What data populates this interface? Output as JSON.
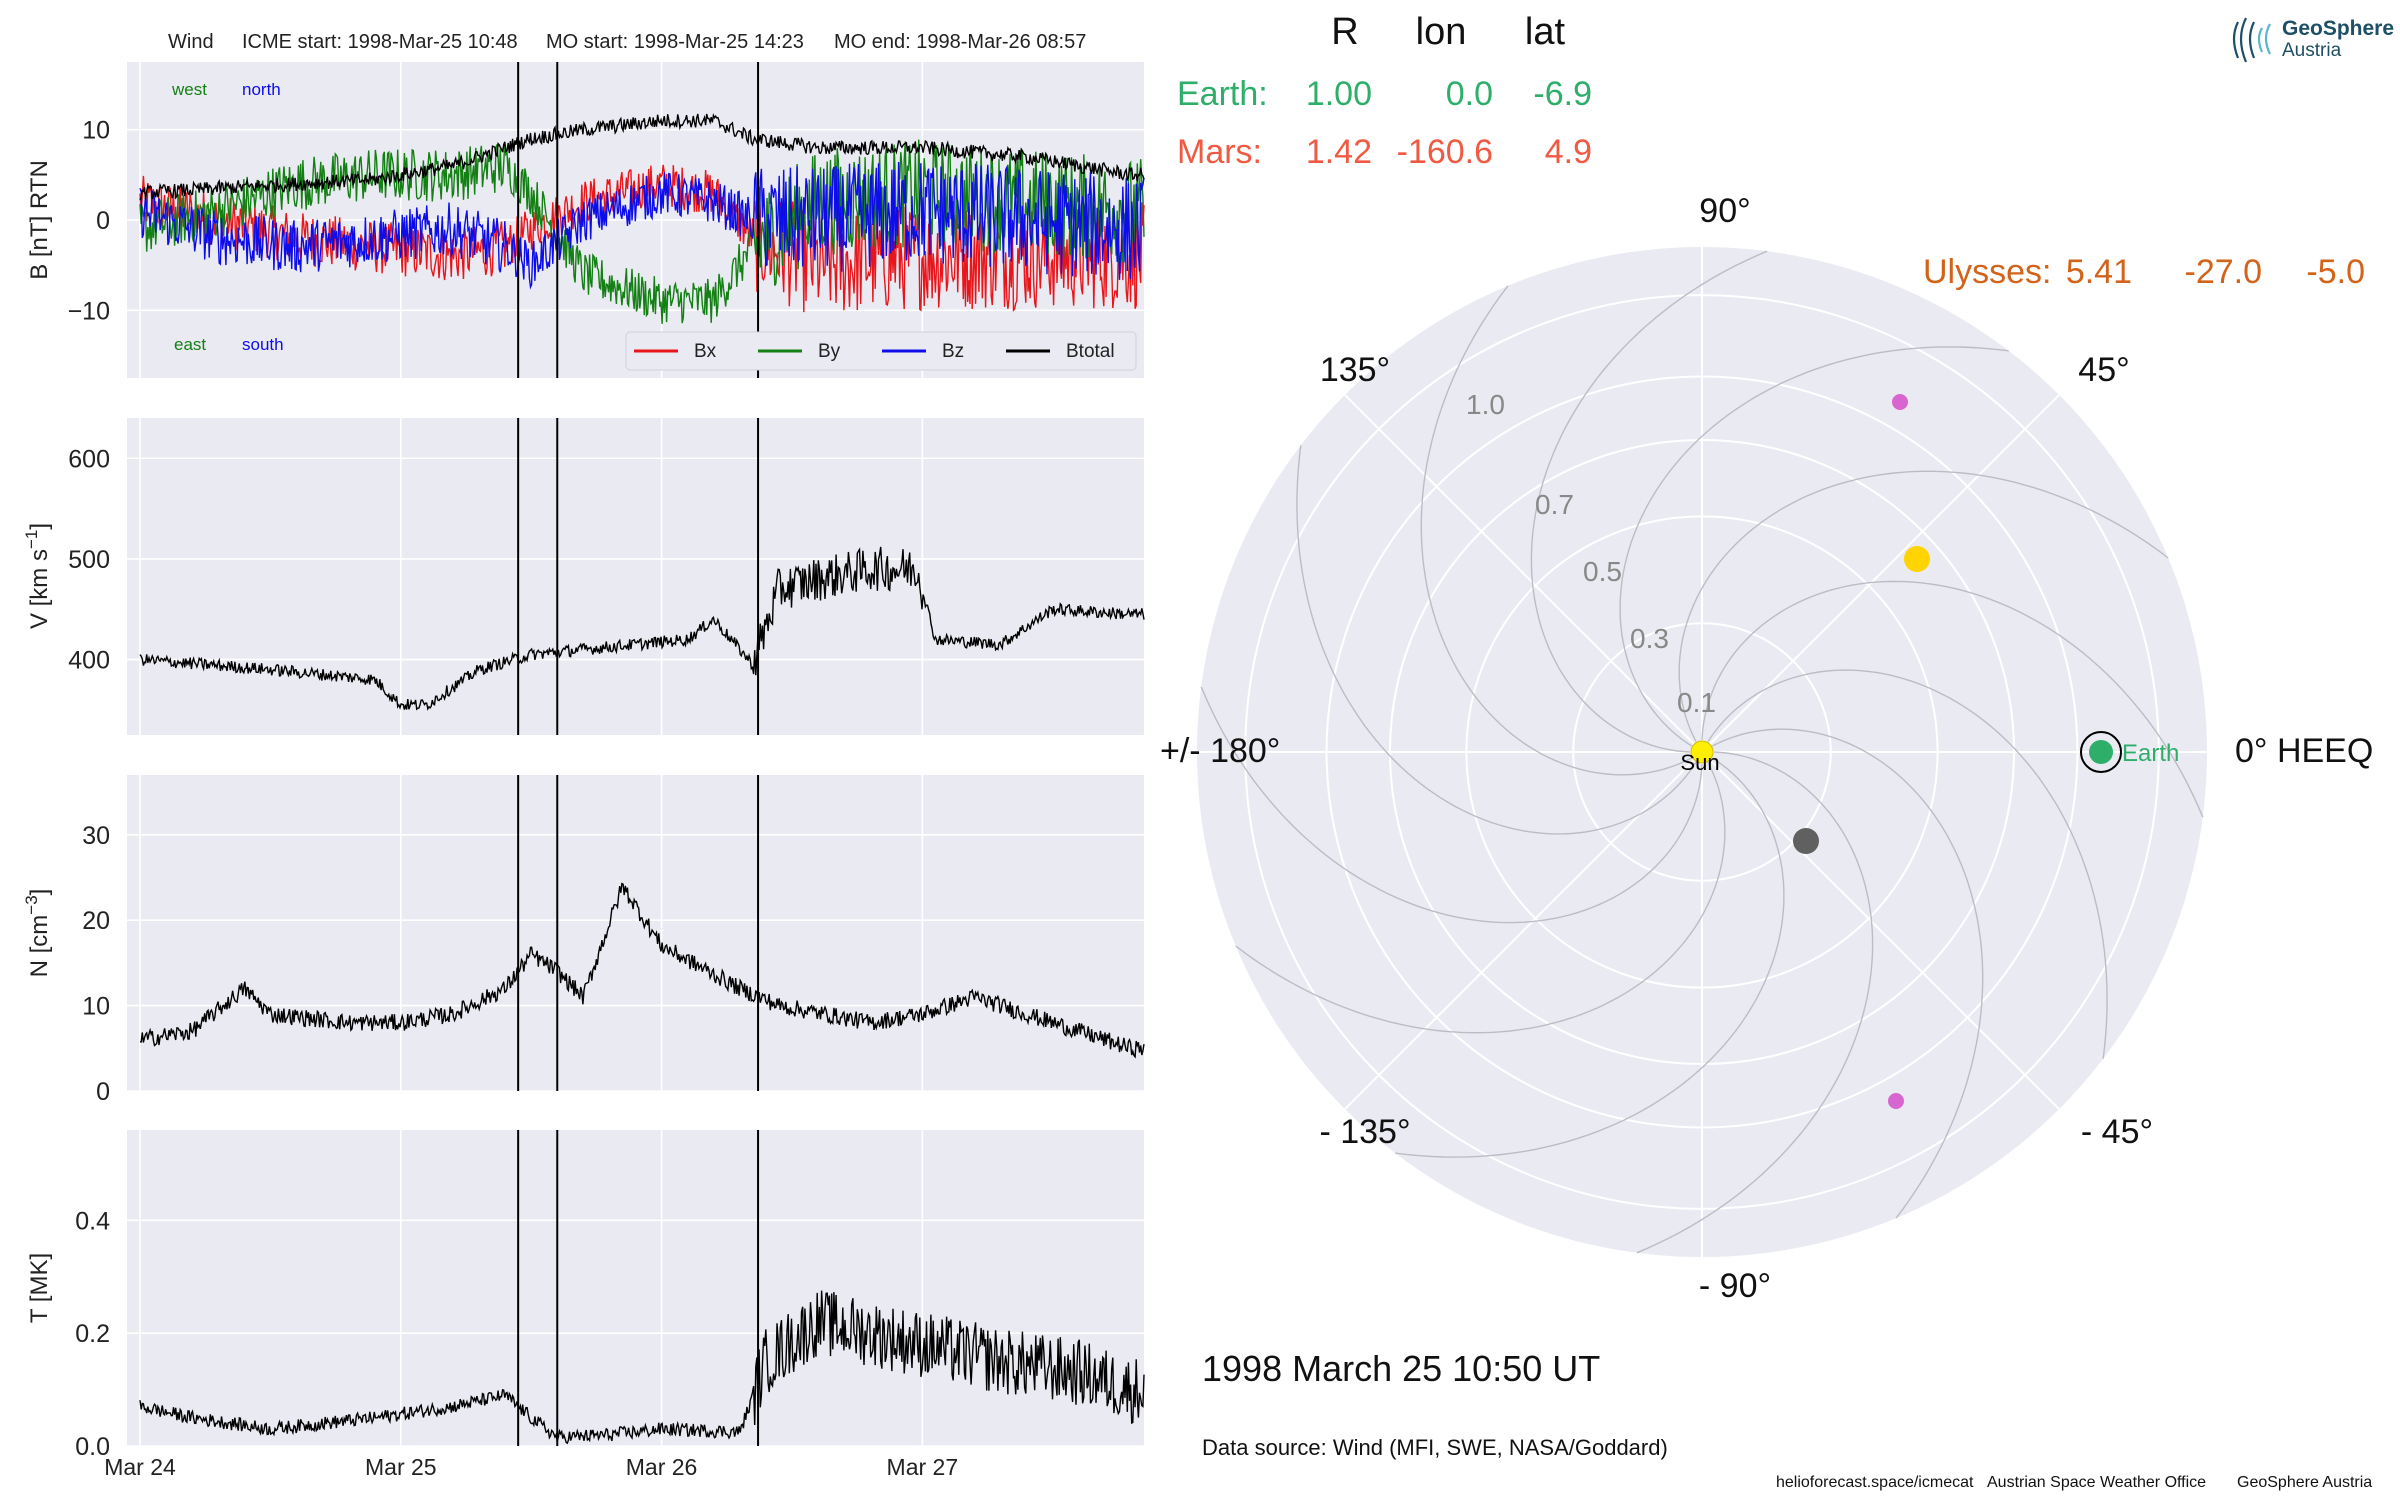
{
  "header": {
    "spacecraft": "Wind",
    "icme_start": "ICME start: 1998-Mar-25 10:48",
    "mo_start": "MO start: 1998-Mar-25 14:23",
    "mo_end": "MO end: 1998-Mar-26 08:57"
  },
  "panels": {
    "b": {
      "ylabel": "B [nT] RTN",
      "yticks": [
        10,
        0,
        -10
      ],
      "ylim": [
        -17.5,
        17.5
      ],
      "corner_labels": {
        "west": "west",
        "north": "north",
        "east": "east",
        "south": "south"
      }
    },
    "v": {
      "ylabel_main": "V [km s",
      "ylabel_sup": "−1",
      "ylabel_end": "]",
      "yticks": [
        600,
        500,
        400
      ],
      "ylim": [
        325,
        640
      ]
    },
    "n": {
      "ylabel_main": "N [cm",
      "ylabel_sup": "−3",
      "ylabel_end": "]",
      "yticks": [
        30,
        20,
        10,
        0
      ],
      "ylim": [
        0,
        37
      ]
    },
    "t": {
      "ylabel": "T [MK]",
      "yticks": [
        0.4,
        0.2,
        0.0
      ],
      "yticklabels": [
        "0.4",
        "0.2",
        "0.0"
      ],
      "ylim": [
        0,
        0.56
      ]
    }
  },
  "xaxis": {
    "tick_labels": [
      "Mar 24",
      "Mar 25",
      "Mar 26",
      "Mar 27"
    ],
    "tick_days": [
      0,
      1,
      2,
      3
    ],
    "xlim_days": [
      -0.05,
      3.85
    ]
  },
  "event_lines_days": [
    1.45,
    1.6,
    2.37
  ],
  "legend": {
    "bx": "Bx",
    "by": "By",
    "bz": "Bz",
    "btotal": "Btotal"
  },
  "colors": {
    "bx": "#e8161b",
    "by": "#138013",
    "bz": "#0d0dea",
    "btotal": "#000000",
    "earth": "#2fae6a",
    "mars": "#f05a43",
    "ulysses": "#d2631a",
    "panel_bg": "#eaeaf2",
    "sun": "#ffee00",
    "vsp": "#ffd400",
    "tsp": "#606060",
    "magenta": "#d866d0"
  },
  "positions_table": {
    "col_r": "R",
    "col_lon": "lon",
    "col_lat": "lat",
    "earth": {
      "label": "Earth:",
      "r": "1.00",
      "lon": "0.0",
      "lat": "-6.9"
    },
    "mars": {
      "label": "Mars:",
      "r": "1.42",
      "lon": "-160.6",
      "lat": "4.9"
    },
    "ulysses": {
      "label": "Ulysses:",
      "r": "5.41",
      "lon": "-27.0",
      "lat": "-5.0"
    }
  },
  "polar": {
    "angle_labels": {
      "a90": "90°",
      "a45": "45°",
      "a135": "135°",
      "a0": "0° HEEQ",
      "a180": "+/- 180°",
      "am45": "- 45°",
      "am135": "- 135°",
      "am90": "- 90°"
    },
    "radial_labels": [
      "0.1",
      "0.3",
      "0.5",
      "0.7",
      "1.0"
    ],
    "sun_label": "Sun",
    "earth_label": "Earth"
  },
  "timestamp": "1998 March 25  10:50 UT",
  "data_source": "Data source: Wind (MFI, SWE, NASA/Goddard)",
  "footer": {
    "site": "helioforecast.space/icmecat",
    "office": "Austrian Space Weather Office",
    "org": "GeoSphere Austria"
  },
  "logo": {
    "line1": "GeoSphere",
    "line2": "Austria"
  },
  "chart_data": [
    {
      "type": "line",
      "title": "Wind    ICME start: 1998-Mar-25 10:48   MO start: 1998-Mar-25 14:23   MO end: 1998-Mar-26 08:57",
      "ylabel": "B [nT] RTN",
      "x_unit": "days since Mar 24 00:00",
      "ylim": [
        -17.5,
        17.5
      ],
      "series": [
        {
          "name": "Btotal",
          "x": [
            0,
            0.3,
            0.6,
            0.9,
            1.2,
            1.4,
            1.5,
            1.7,
            2.0,
            2.2,
            2.35,
            2.6,
            3.0,
            3.4,
            3.8
          ],
          "values": [
            3,
            3.5,
            4,
            4.5,
            6,
            8,
            9,
            10,
            11,
            11,
            9,
            8,
            8,
            7,
            5
          ]
        },
        {
          "name": "Bx",
          "x": [
            0,
            0.3,
            0.6,
            0.9,
            1.2,
            1.4,
            1.5,
            1.7,
            2.0,
            2.2,
            2.35,
            2.6,
            3.0,
            3.4,
            3.8
          ],
          "values": [
            2,
            0,
            -2,
            -3,
            -4,
            -3,
            -1,
            2,
            4,
            3,
            -2,
            -5,
            -4,
            -4,
            -4
          ]
        },
        {
          "name": "By",
          "x": [
            0,
            0.3,
            0.6,
            0.9,
            1.2,
            1.4,
            1.5,
            1.7,
            2.0,
            2.2,
            2.35,
            2.6,
            3.0,
            3.4,
            3.8
          ],
          "values": [
            -1,
            1,
            4,
            5,
            5,
            6,
            3,
            -6,
            -9,
            -9,
            -3,
            2,
            3,
            2,
            1
          ]
        },
        {
          "name": "Bz",
          "x": [
            0,
            0.3,
            0.6,
            0.9,
            1.2,
            1.4,
            1.5,
            1.7,
            2.0,
            2.2,
            2.35,
            2.6,
            3.0,
            3.4,
            3.8
          ],
          "values": [
            1,
            -2,
            -3,
            -2,
            -1,
            -3,
            -5,
            0,
            3,
            2,
            0,
            0,
            1,
            0,
            -1
          ]
        }
      ]
    },
    {
      "type": "line",
      "ylabel": "V [km s−1]",
      "ylim": [
        325,
        640
      ],
      "series": [
        {
          "x": [
            0,
            0.5,
            0.9,
            1.0,
            1.1,
            1.3,
            1.5,
            1.7,
            1.9,
            2.1,
            2.2,
            2.35,
            2.45,
            2.6,
            2.8,
            2.98,
            3.05,
            3.3,
            3.5,
            3.8
          ],
          "values": [
            400,
            390,
            380,
            355,
            355,
            390,
            405,
            410,
            415,
            420,
            440,
            395,
            470,
            480,
            490,
            490,
            420,
            415,
            450,
            445
          ]
        }
      ]
    },
    {
      "type": "line",
      "ylabel": "N [cm−3]",
      "ylim": [
        0,
        37
      ],
      "series": [
        {
          "x": [
            0,
            0.2,
            0.4,
            0.5,
            0.8,
            1.0,
            1.2,
            1.4,
            1.5,
            1.6,
            1.7,
            1.85,
            2.0,
            2.3,
            2.45,
            2.8,
            3.0,
            3.2,
            3.5,
            3.8
          ],
          "values": [
            6,
            7,
            12,
            9,
            8,
            8,
            9,
            12,
            16,
            14,
            11,
            24,
            17,
            12,
            10,
            8,
            9,
            11,
            8,
            5
          ]
        }
      ]
    },
    {
      "type": "line",
      "ylabel": "T [MK]",
      "ylim": [
        0,
        0.56
      ],
      "series": [
        {
          "x": [
            0,
            0.2,
            0.5,
            0.9,
            1.2,
            1.4,
            1.5,
            1.6,
            1.8,
            2.0,
            2.3,
            2.4,
            2.6,
            2.8,
            3.0,
            3.3,
            3.6,
            3.8
          ],
          "values": [
            0.07,
            0.05,
            0.03,
            0.05,
            0.07,
            0.09,
            0.05,
            0.015,
            0.02,
            0.03,
            0.025,
            0.15,
            0.22,
            0.2,
            0.18,
            0.15,
            0.13,
            0.1
          ]
        }
      ]
    }
  ]
}
